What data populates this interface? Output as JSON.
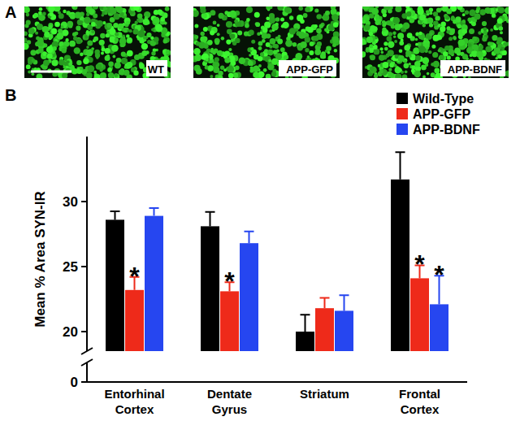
{
  "panel_labels": [
    "A",
    "B"
  ],
  "images": [
    {
      "label": "WT"
    },
    {
      "label": "APP-GFP"
    },
    {
      "label": "APP-BDNF"
    }
  ],
  "chart_data": {
    "type": "bar",
    "categories": [
      "Entorhinal Cortex",
      "Dentate Gyrus",
      "Striatum",
      "Frontal Cortex"
    ],
    "ylabel": "Mean % Area SYN-IR",
    "ylim": [
      0,
      35
    ],
    "yticks": [
      0,
      20,
      25,
      30
    ],
    "legend": "upper right",
    "series": [
      {
        "name": "Wild-Type",
        "color": "#000000",
        "values": [
          28.6,
          28.1,
          20.0,
          31.7
        ],
        "errors": [
          0.65,
          1.1,
          1.3,
          2.1
        ]
      },
      {
        "name": "APP-GFP",
        "color": "#ee2a1a",
        "values": [
          23.2,
          23.1,
          21.8,
          24.1
        ],
        "errors": [
          1.0,
          0.7,
          0.8,
          1.0
        ]
      },
      {
        "name": "APP-BDNF",
        "color": "#2646f0",
        "values": [
          28.9,
          26.8,
          21.6,
          22.1
        ],
        "errors": [
          0.6,
          0.9,
          1.2,
          2.2
        ]
      }
    ],
    "annotations": [
      {
        "text": "*",
        "series": 1,
        "category": 0
      },
      {
        "text": "*",
        "series": 1,
        "category": 1
      },
      {
        "text": "*",
        "series": 1,
        "category": 3
      },
      {
        "text": "*",
        "series": 2,
        "category": 3
      }
    ]
  }
}
